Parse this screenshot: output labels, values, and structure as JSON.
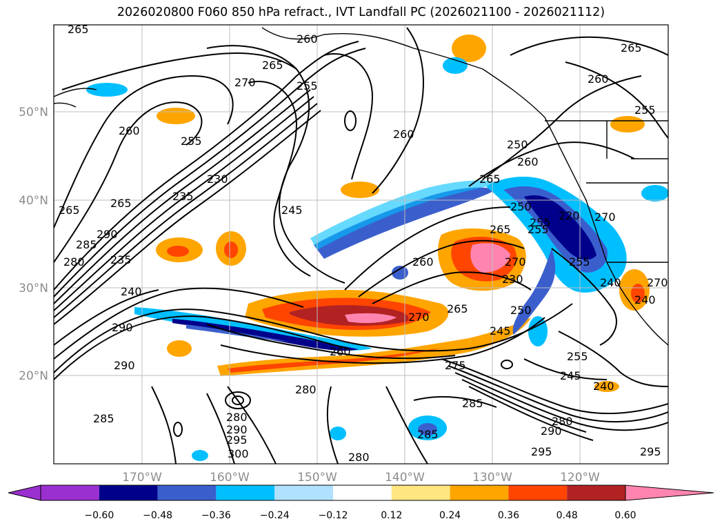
{
  "title": "2026020800 F060 850 hPa refract., IVT Landfall PC (2026021100 - 2026021112)",
  "lat_labels": [
    "50°N",
    "40°N",
    "30°N",
    "20°N"
  ],
  "lon_labels": [
    "170°W",
    "160°W",
    "150°W",
    "140°W",
    "130°W",
    "120°W"
  ],
  "contour_labels": [
    "265",
    "260",
    "265",
    "255",
    "270",
    "260",
    "255",
    "265",
    "260",
    "255",
    "265",
    "260",
    "245",
    "265",
    "235",
    "280",
    "285",
    "290",
    "240",
    "290",
    "290",
    "285",
    "280",
    "280",
    "290",
    "295",
    "300",
    "280",
    "260",
    "275",
    "270",
    "265",
    "250",
    "245",
    "230",
    "260",
    "265",
    "270",
    "255",
    "250",
    "255",
    "240",
    "245",
    "255",
    "285",
    "280",
    "290",
    "295",
    "295",
    "240",
    "285",
    "270",
    "220",
    "265",
    "260",
    "250",
    "255",
    "235",
    "230",
    "240",
    "270"
  ],
  "colorbar": {
    "ticks": [
      "−0.60",
      "−0.48",
      "−0.36",
      "−0.24",
      "−0.12",
      "0.12",
      "0.24",
      "0.36",
      "0.48",
      "0.60"
    ],
    "colors": [
      "#9b30d0",
      "#00008b",
      "#3a5fcd",
      "#00bfff",
      "#b0e2ff",
      "#ffffff",
      "#ffe680",
      "#ffa500",
      "#ff4500",
      "#b22222",
      "#ff85b0"
    ]
  }
}
